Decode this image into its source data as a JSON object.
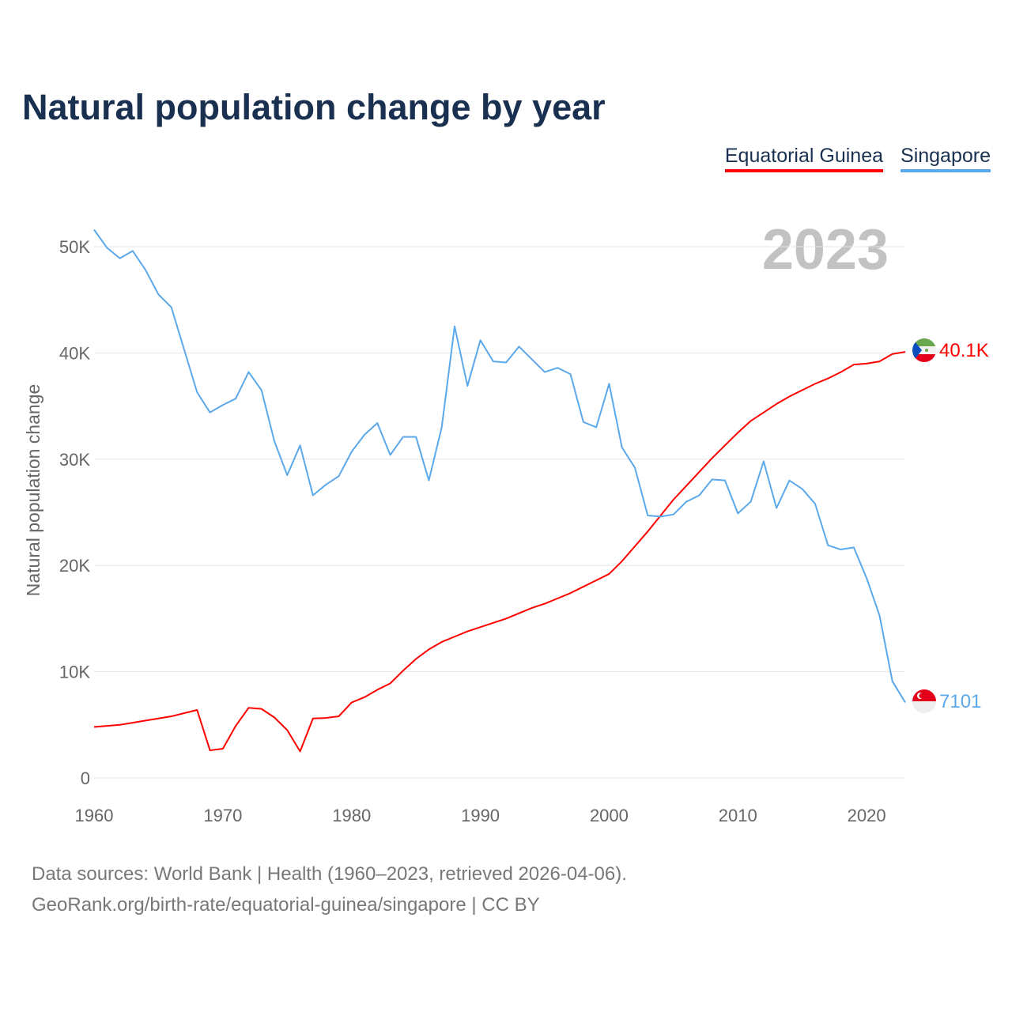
{
  "chart_data": {
    "type": "line",
    "title": "Natural population change by year",
    "xlabel": "",
    "ylabel": "Natural population change",
    "xlim": [
      1960,
      2023
    ],
    "ylim": [
      0,
      50000
    ],
    "y_ticks": [
      0,
      10000,
      20000,
      30000,
      40000,
      50000
    ],
    "y_tick_labels": [
      "0",
      "10K",
      "20K",
      "30K",
      "40K",
      "50K"
    ],
    "x_ticks": [
      1960,
      1970,
      1980,
      1990,
      2000,
      2010,
      2020
    ],
    "x_tick_labels": [
      "1960",
      "1970",
      "1980",
      "1990",
      "2000",
      "2010",
      "2020"
    ],
    "grid": true,
    "legend_placement": "top-right",
    "year_watermark": "2023",
    "x": [
      1960,
      1961,
      1962,
      1963,
      1964,
      1965,
      1966,
      1967,
      1968,
      1969,
      1970,
      1971,
      1972,
      1973,
      1974,
      1975,
      1976,
      1977,
      1978,
      1979,
      1980,
      1981,
      1982,
      1983,
      1984,
      1985,
      1986,
      1987,
      1988,
      1989,
      1990,
      1991,
      1992,
      1993,
      1994,
      1995,
      1996,
      1997,
      1998,
      1999,
      2000,
      2001,
      2002,
      2003,
      2004,
      2005,
      2006,
      2007,
      2008,
      2009,
      2010,
      2011,
      2012,
      2013,
      2014,
      2015,
      2016,
      2017,
      2018,
      2019,
      2020,
      2021,
      2022,
      2023
    ],
    "series": [
      {
        "name": "Equatorial Guinea",
        "color": "#ff0000",
        "end_label": "40.1K",
        "values": [
          4800,
          4900,
          5000,
          5200,
          5400,
          5600,
          5800,
          6100,
          6400,
          2600,
          2750,
          4900,
          6600,
          6500,
          5700,
          4500,
          2500,
          5600,
          5650,
          5800,
          7100,
          7600,
          8300,
          8900,
          10100,
          11200,
          12100,
          12800,
          13300,
          13800,
          14200,
          14600,
          15000,
          15500,
          16000,
          16400,
          16900,
          17400,
          18000,
          18600,
          19200,
          20400,
          21800,
          23200,
          24700,
          26200,
          27500,
          28800,
          30100,
          31300,
          32500,
          33600,
          34400,
          35200,
          35900,
          36500,
          37100,
          37600,
          38200,
          38900,
          39000,
          39200,
          39900,
          40100
        ]
      },
      {
        "name": "Singapore",
        "color": "#5ba8ea",
        "end_label": "7101",
        "values": [
          51600,
          49900,
          48900,
          49600,
          47800,
          45500,
          44300,
          40300,
          36300,
          34400,
          35100,
          35700,
          38200,
          36500,
          31700,
          28500,
          31300,
          26600,
          27600,
          28400,
          30700,
          32300,
          33400,
          30400,
          32100,
          32100,
          28000,
          33000,
          42500,
          36900,
          41200,
          39200,
          39100,
          40600,
          39400,
          38200,
          38600,
          38000,
          33500,
          33000,
          37100,
          31100,
          29200,
          24700,
          24600,
          24800,
          26000,
          26600,
          28100,
          28000,
          24900,
          26000,
          29800,
          25400,
          28000,
          27200,
          25800,
          21900,
          21500,
          21700,
          18800,
          15300,
          9100,
          7101
        ]
      }
    ]
  },
  "footer": {
    "line1": "Data sources: World Bank | Health (1960–2023, retrieved 2026-04-06).",
    "line2": "GeoRank.org/birth-rate/equatorial-guinea/singapore | CC BY"
  }
}
